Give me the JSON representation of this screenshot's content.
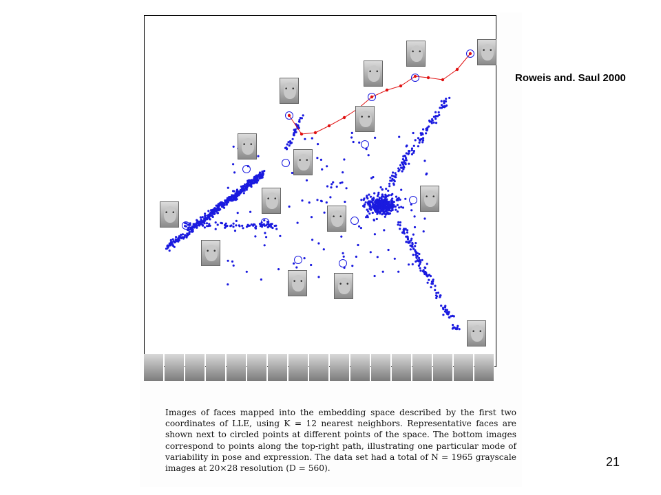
{
  "citation": "Roweis and. Saul 2000",
  "slide_number": "21",
  "caption": "Images of faces mapped into the embedding space described by the first two coordinates of LLE, using K = 12 nearest neighbors. Representative faces are shown next to circled points at different points of the space. The bottom images correspond to points along the top-right path, illustrating one particular mode of variability in pose and expression. The data set had a total of N = 1965 grayscale images at 20×28 resolution (D = 560).",
  "figure": {
    "point_color": "#1a1adf",
    "path_color": "#e01010",
    "face_images": [
      "face-image"
    ],
    "strip_count": 17
  }
}
